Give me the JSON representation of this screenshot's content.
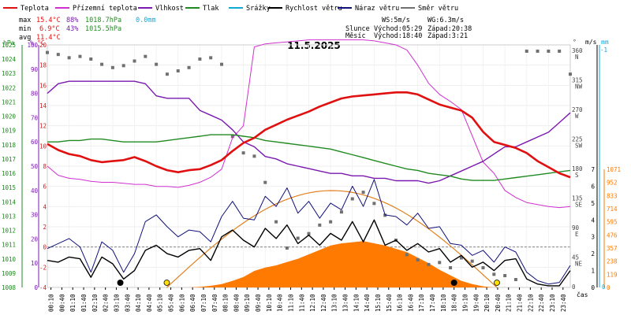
{
  "legend": [
    {
      "label": "Teplota",
      "color": "#e01010"
    },
    {
      "label": "Přízemní teplota",
      "color": "#d030d0"
    },
    {
      "label": "Vlhkost",
      "color": "#7a18b0"
    },
    {
      "label": "Tlak",
      "color": "#208a20"
    },
    {
      "label": "Srážky",
      "color": "#10a8d8"
    },
    {
      "label": "Rychlost větru",
      "color": "#000000"
    },
    {
      "label": "Náraz větru",
      "color": "#10107a"
    },
    {
      "label": "Směr větru",
      "color": "#707070"
    }
  ],
  "stats": {
    "max_label": "max",
    "max_temp": "15.4°C",
    "max_hum": "88%",
    "max_press": "1018.7hPa",
    "max_rain": "0.0mm",
    "min_label": "min",
    "min_temp": "6.9°C",
    "min_hum": "43%",
    "min_press": "1015.5hPa",
    "avg_label": "avg",
    "avg_temp": "11.4°C"
  },
  "wind_info": {
    "ws": "WS:5m/s",
    "wg": "WG:6.3m/s"
  },
  "sun_info": {
    "label": "Slunce",
    "rise": "Východ:05:29",
    "set": "Západ:20:38"
  },
  "moon_info": {
    "label": "Měsíc",
    "rise": "Východ:18:40",
    "set": "Západ:3:21"
  },
  "date": "11.5.2025",
  "colors": {
    "temp": "#e01010",
    "ground": "#d030d0",
    "hum": "#7a18b0",
    "press": "#208a20",
    "rain": "#10a8d8",
    "wind": "#000000",
    "gust": "#10107a",
    "dir": "#707070",
    "solar": "#ff7a00",
    "sun_arc": "#e08020",
    "hpa_axis": "#208a20",
    "pct_axis": "#7a18b0",
    "temp_axis": "#e01010"
  },
  "axes": {
    "hpa_unit": "hPa",
    "pct_unit": "%",
    "temp_unit": "°C",
    "deg_unit": "°",
    "ms_unit": "m/s",
    "mm_unit": "mm",
    "x_unit": "čas",
    "hpa_ticks": [
      "1025",
      "1024",
      "1023",
      "1022",
      "1021",
      "1020",
      "1019",
      "1018",
      "1017",
      "1016",
      "1015",
      "1014",
      "1013",
      "1012",
      "1011",
      "1010",
      "1009",
      "1008"
    ],
    "pct_ticks": [
      "100",
      "90",
      "80",
      "70",
      "60",
      "50",
      "40",
      "30",
      "20",
      "10",
      "0"
    ],
    "temp_ticks": [
      "20",
      "18",
      "16",
      "14",
      "12",
      "10",
      "8",
      "6",
      "4",
      "2",
      "0",
      "-2",
      "-4"
    ],
    "dir_ticks": [
      {
        "deg": "360",
        "lbl": "N"
      },
      {
        "deg": "315",
        "lbl": "NW"
      },
      {
        "deg": "270",
        "lbl": "W"
      },
      {
        "deg": "225",
        "lbl": "SW"
      },
      {
        "deg": "180",
        "lbl": "S"
      },
      {
        "deg": "135",
        "lbl": "SE"
      },
      {
        "deg": "90",
        "lbl": "E"
      },
      {
        "deg": "45",
        "lbl": "NE"
      },
      {
        "deg": "0",
        "lbl": ""
      }
    ],
    "ms_ticks": [
      "7",
      "6",
      "5",
      "4",
      "3",
      "2",
      "1",
      "0"
    ],
    "mm_ticks": [
      "-1",
      "0"
    ],
    "solar_ticks": [
      "1071",
      "952",
      "833",
      "714",
      "595",
      "476",
      "357",
      "238",
      "119",
      "0"
    ],
    "x_ticks": [
      "00:10",
      "00:40",
      "01:10",
      "01:40",
      "02:10",
      "02:40",
      "03:10",
      "03:40",
      "04:10",
      "04:40",
      "05:10",
      "05:40",
      "06:10",
      "06:40",
      "07:10",
      "07:40",
      "08:10",
      "08:40",
      "09:10",
      "09:40",
      "10:10",
      "10:40",
      "11:10",
      "11:40",
      "12:10",
      "12:40",
      "13:10",
      "13:40",
      "14:10",
      "14:40",
      "15:10",
      "15:40",
      "16:10",
      "16:40",
      "17:10",
      "17:40",
      "18:10",
      "18:40",
      "19:10",
      "19:40",
      "20:10",
      "20:40",
      "21:10",
      "21:40",
      "22:10",
      "22:40",
      "23:10",
      "23:40"
    ]
  },
  "chart_data": {
    "type": "line",
    "title": "11.5.2025",
    "xlabel": "čas",
    "x_hours": [
      0,
      0.5,
      1,
      1.5,
      2,
      2.5,
      3,
      3.5,
      4,
      4.5,
      5,
      5.5,
      6,
      6.5,
      7,
      7.5,
      8,
      8.5,
      9,
      9.5,
      10,
      10.5,
      11,
      11.5,
      12,
      12.5,
      13,
      13.5,
      14,
      14.5,
      15,
      15.5,
      16,
      16.5,
      17,
      17.5,
      18,
      18.5,
      19,
      19.5,
      20,
      20.5,
      21,
      21.5,
      22,
      22.5,
      23,
      23.5,
      24
    ],
    "ylim_temp": [
      -4,
      20
    ],
    "ylim_hum": [
      0,
      100
    ],
    "ylim_press": [
      1008,
      1025
    ],
    "ylim_wind": [
      0,
      7
    ],
    "ylim_solar": [
      0,
      1071
    ],
    "series": [
      {
        "name": "Teplota",
        "key": "temp",
        "values": [
          10.2,
          9.6,
          9.2,
          9.0,
          8.6,
          8.4,
          8.5,
          8.6,
          8.9,
          8.5,
          8.0,
          7.6,
          7.4,
          7.6,
          7.7,
          8.1,
          8.6,
          9.5,
          10.3,
          10.8,
          11.6,
          12.1,
          12.6,
          13.0,
          13.4,
          13.9,
          14.3,
          14.7,
          14.9,
          15.0,
          15.1,
          15.2,
          15.3,
          15.3,
          15.1,
          14.6,
          14.1,
          13.8,
          13.5,
          12.8,
          11.4,
          10.4,
          10.1,
          9.8,
          9.3,
          8.5,
          7.9,
          7.3,
          6.9
        ]
      },
      {
        "name": "Přízemní teplota",
        "key": "ground",
        "values": [
          8.0,
          7.1,
          6.8,
          6.7,
          6.5,
          6.4,
          6.4,
          6.3,
          6.2,
          6.2,
          6.0,
          6.0,
          5.9,
          6.1,
          6.4,
          6.9,
          7.7,
          10.8,
          12.0,
          19.8,
          20.1,
          20.2,
          20.3,
          20.4,
          20.5,
          20.5,
          20.5,
          20.5,
          20.5,
          20.5,
          20.4,
          20.2,
          20.0,
          19.5,
          18.0,
          16.2,
          15.1,
          14.4,
          13.6,
          11.0,
          8.4,
          7.3,
          5.6,
          4.9,
          4.4,
          4.2,
          4.0,
          3.9,
          4.0
        ]
      },
      {
        "name": "Vlhkost",
        "key": "hum",
        "values": [
          80,
          84,
          85,
          85,
          85,
          85,
          85,
          85,
          85,
          84,
          79,
          78,
          78,
          78,
          73,
          71,
          69,
          65,
          60,
          58,
          54,
          53,
          51,
          50,
          49,
          48,
          47,
          47,
          46,
          46,
          45,
          45,
          44,
          44,
          44,
          43,
          44,
          46,
          48,
          50,
          52,
          55,
          58,
          58,
          60,
          62,
          64,
          68,
          72
        ]
      },
      {
        "name": "Tlak",
        "key": "press",
        "values": [
          1018.2,
          1018.2,
          1018.3,
          1018.3,
          1018.4,
          1018.4,
          1018.3,
          1018.2,
          1018.2,
          1018.2,
          1018.2,
          1018.3,
          1018.4,
          1018.5,
          1018.6,
          1018.7,
          1018.7,
          1018.7,
          1018.6,
          1018.5,
          1018.3,
          1018.2,
          1018.1,
          1018.0,
          1017.9,
          1017.8,
          1017.7,
          1017.5,
          1017.3,
          1017.1,
          1016.9,
          1016.7,
          1016.5,
          1016.3,
          1016.2,
          1016.0,
          1015.9,
          1015.8,
          1015.6,
          1015.5,
          1015.5,
          1015.5,
          1015.6,
          1015.7,
          1015.8,
          1015.9,
          1016.0,
          1016.1,
          1016.2
        ]
      },
      {
        "name": "Rychlost větru",
        "key": "wind",
        "values": [
          1.6,
          1.5,
          1.8,
          1.7,
          0.6,
          1.8,
          1.4,
          0.5,
          1.0,
          2.2,
          2.5,
          2.0,
          1.8,
          2.2,
          2.3,
          1.6,
          3.0,
          3.4,
          2.8,
          2.4,
          3.5,
          2.9,
          3.7,
          2.6,
          3.1,
          2.5,
          3.2,
          2.8,
          3.9,
          2.7,
          4.0,
          2.5,
          2.8,
          2.2,
          2.6,
          2.1,
          2.3,
          1.5,
          1.9,
          1.2,
          1.5,
          1.0,
          1.6,
          1.7,
          0.5,
          0.2,
          0.1,
          0.1,
          1.0
        ]
      },
      {
        "name": "Náraz větru",
        "key": "gust",
        "values": [
          2.3,
          2.6,
          2.9,
          2.4,
          0.9,
          2.7,
          2.2,
          0.9,
          2.0,
          3.9,
          4.3,
          3.6,
          3.0,
          3.4,
          3.3,
          2.7,
          4.2,
          5.1,
          4.1,
          4.0,
          5.4,
          4.8,
          5.9,
          4.4,
          5.1,
          4.1,
          5.0,
          4.6,
          6.0,
          4.8,
          6.4,
          4.3,
          4.2,
          3.7,
          4.4,
          3.5,
          3.6,
          2.6,
          2.5,
          1.9,
          2.2,
          1.5,
          2.4,
          2.1,
          0.9,
          0.4,
          0.2,
          0.3,
          1.3
        ]
      },
      {
        "name": "Směr větru",
        "key": "dir",
        "values": [
          358,
          355,
          350,
          352,
          348,
          340,
          335,
          338,
          345,
          352,
          340,
          325,
          330,
          335,
          348,
          350,
          340,
          230,
          205,
          200,
          160,
          100,
          60,
          75,
          82,
          95,
          100,
          115,
          135,
          145,
          128,
          110,
          72,
          50,
          42,
          35,
          38,
          30,
          45,
          40,
          30,
          20,
          18,
          12,
          360,
          360,
          360,
          360,
          325
        ]
      },
      {
        "name": "Srážky",
        "key": "rain",
        "values": [
          0,
          0,
          0,
          0,
          0,
          0,
          0,
          0,
          0,
          0,
          0,
          0,
          0,
          0,
          0,
          0,
          0,
          0,
          0,
          0,
          0,
          0,
          0,
          0,
          0,
          0,
          0,
          0,
          0,
          0,
          0,
          0,
          0,
          0,
          0,
          0,
          0,
          0,
          0,
          0,
          0,
          0,
          0,
          0,
          0,
          0,
          0,
          0,
          0
        ]
      },
      {
        "name": "Solar",
        "key": "solar",
        "values": [
          0,
          0,
          0,
          0,
          0,
          0,
          0,
          0,
          0,
          0,
          0,
          0,
          0,
          0,
          5,
          15,
          30,
          60,
          95,
          150,
          180,
          200,
          230,
          260,
          300,
          340,
          380,
          400,
          410,
          420,
          400,
          380,
          350,
          320,
          270,
          220,
          160,
          110,
          60,
          30,
          10,
          0,
          0,
          0,
          0,
          0,
          0,
          0,
          0
        ]
      }
    ]
  }
}
